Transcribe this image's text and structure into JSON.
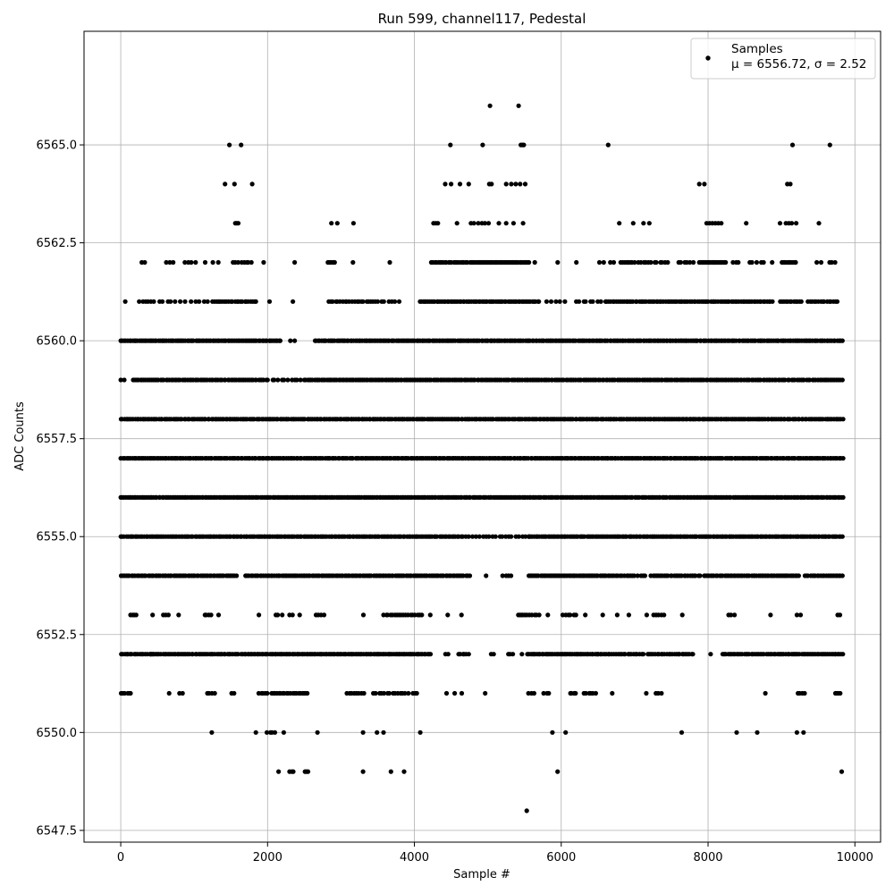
{
  "chart_data": {
    "type": "scatter",
    "title": "Run 599, channel117, Pedestal",
    "xlabel": "Sample #",
    "ylabel": "ADC Counts",
    "xlim": [
      -500,
      10350
    ],
    "ylim": [
      6547.2,
      6567.9
    ],
    "xticks": [
      0,
      2000,
      4000,
      6000,
      8000,
      10000
    ],
    "xtick_labels": [
      "0",
      "2000",
      "4000",
      "6000",
      "8000",
      "10000"
    ],
    "yticks": [
      6547.5,
      6550.0,
      6552.5,
      6555.0,
      6557.5,
      6560.0,
      6562.5,
      6565.0
    ],
    "ytick_labels": [
      "6547.5",
      "6550.0",
      "6552.5",
      "6555.0",
      "6557.5",
      "6560.0",
      "6562.5",
      "6565.0"
    ],
    "grid": true,
    "legend_position": "top-right",
    "marker_color": "#000000",
    "series": [
      {
        "name": "Samples",
        "stats_label": "μ = 6556.72, σ = 2.52",
        "levels": [
          {
            "y": 6566,
            "x": [
              5030,
              5420
            ]
          },
          {
            "y": 6565,
            "x": [
              1480,
              1640,
              4490,
              4930,
              5450,
              5470,
              5490,
              6640,
              9150,
              9660
            ]
          },
          {
            "y": 6564,
            "x": [
              1420,
              1550,
              1790,
              4420,
              4500,
              4620,
              4740,
              5020,
              5050,
              5250,
              5320,
              5380,
              5440,
              5510,
              7880,
              7950,
              9080,
              9120
            ]
          },
          {
            "y": 6563,
            "x": [
              1560,
              1580,
              1600,
              2870,
              2950,
              3170,
              4260,
              4290,
              4320,
              4580,
              4770,
              4810,
              4870,
              4920,
              4960,
              5010,
              5150,
              5250,
              5350,
              5480,
              6790,
              6980,
              7120,
              7200,
              7980,
              8020,
              8060,
              8100,
              8140,
              8180,
              8520,
              8980,
              9060,
              9100,
              9140,
              9200,
              9510
            ]
          },
          {
            "y": 6562,
            "ranges": [
              [
                280,
                330,
                2
              ],
              [
                620,
                720,
                3
              ],
              [
                870,
                1020,
                4
              ],
              [
                1150,
                1350,
                3
              ],
              [
                1530,
                1780,
                8
              ],
              [
                1940,
                1960,
                1
              ],
              [
                2360,
                2380,
                1
              ],
              [
                2820,
                2920,
                6
              ],
              [
                3160,
                3180,
                1
              ],
              [
                3650,
                3670,
                1
              ],
              [
                4230,
                4720,
                22
              ],
              [
                4760,
                5560,
                45
              ],
              [
                5620,
                5650,
                1
              ],
              [
                5940,
                5960,
                1
              ],
              [
                6200,
                6230,
                1
              ],
              [
                6520,
                6720,
                4
              ],
              [
                6810,
                7000,
                8
              ],
              [
                7050,
                7450,
                12
              ],
              [
                7600,
                7800,
                6
              ],
              [
                7880,
                8240,
                22
              ],
              [
                8340,
                8420,
                3
              ],
              [
                8560,
                8760,
                5
              ],
              [
                8860,
                8880,
                1
              ],
              [
                9000,
                9200,
                10
              ],
              [
                9480,
                9540,
                2
              ],
              [
                9650,
                9730,
                3
              ]
            ]
          },
          {
            "y": 6561,
            "ranges": [
              [
                50,
                80,
                1
              ],
              [
                250,
                420,
                5
              ],
              [
                450,
                1250,
                14
              ],
              [
                1280,
                1850,
                22
              ],
              [
                2020,
                2050,
                1
              ],
              [
                2330,
                2360,
                1
              ],
              [
                2830,
                3500,
                22
              ],
              [
                3540,
                3800,
                6
              ],
              [
                4070,
                5700,
                70
              ],
              [
                5800,
                6050,
                5
              ],
              [
                6200,
                6540,
                8
              ],
              [
                6600,
                8880,
                90
              ],
              [
                8980,
                9270,
                12
              ],
              [
                9360,
                9760,
                15
              ]
            ]
          },
          {
            "y": 6560,
            "ranges": [
              [
                0,
                2180,
                95
              ],
              [
                2310,
                2380,
                2
              ],
              [
                2640,
                5050,
                105
              ],
              [
                5050,
                9830,
                200
              ]
            ]
          },
          {
            "y": 6559,
            "ranges": [
              [
                0,
                60,
                2
              ],
              [
                170,
                2000,
                75
              ],
              [
                2060,
                2450,
                10
              ],
              [
                2500,
                4700,
                95
              ],
              [
                4700,
                9830,
                200
              ]
            ]
          },
          {
            "y": 6558,
            "ranges": [
              [
                0,
                9840,
                400
              ]
            ]
          },
          {
            "y": 6557,
            "ranges": [
              [
                0,
                9840,
                380
              ]
            ]
          },
          {
            "y": 6556,
            "ranges": [
              [
                0,
                9840,
                420
              ]
            ]
          },
          {
            "y": 6555,
            "ranges": [
              [
                0,
                4660,
                190
              ],
              [
                4700,
                5560,
                20
              ],
              [
                5560,
                9830,
                180
              ]
            ]
          },
          {
            "y": 6554,
            "ranges": [
              [
                0,
                1580,
                65
              ],
              [
                1700,
                4620,
                120
              ],
              [
                4640,
                4760,
                5
              ],
              [
                4970,
                4990,
                1
              ],
              [
                5200,
                5320,
                4
              ],
              [
                5560,
                6660,
                50
              ],
              [
                6690,
                7000,
                12
              ],
              [
                7040,
                7150,
                4
              ],
              [
                7220,
                7890,
                26
              ],
              [
                7940,
                9240,
                55
              ],
              [
                9320,
                9830,
                22
              ]
            ]
          },
          {
            "y": 6553,
            "ranges": [
              [
                130,
                210,
                4
              ],
              [
                430,
                440,
                1
              ],
              [
                580,
                650,
                3
              ],
              [
                780,
                800,
                1
              ],
              [
                1140,
                1230,
                4
              ],
              [
                1330,
                1340,
                1
              ],
              [
                1880,
                1890,
                1
              ],
              [
                2100,
                2200,
                3
              ],
              [
                2300,
                2340,
                2
              ],
              [
                2430,
                2440,
                1
              ],
              [
                2660,
                2780,
                4
              ],
              [
                3300,
                3310,
                1
              ],
              [
                3580,
                4100,
                18
              ],
              [
                4200,
                4220,
                1
              ],
              [
                4440,
                4460,
                1
              ],
              [
                4640,
                4650,
                1
              ],
              [
                5410,
                5530,
                6
              ],
              [
                5560,
                5700,
                5
              ],
              [
                5800,
                5830,
                1
              ],
              [
                6020,
                6200,
                6
              ],
              [
                6310,
                6330,
                1
              ],
              [
                6560,
                6580,
                1
              ],
              [
                6750,
                6770,
                1
              ],
              [
                6910,
                6930,
                1
              ],
              [
                7160,
                7180,
                1
              ],
              [
                7250,
                7400,
                5
              ],
              [
                7640,
                7660,
                1
              ],
              [
                8280,
                8360,
                3
              ],
              [
                8840,
                8860,
                1
              ],
              [
                9210,
                9260,
                2
              ],
              [
                9760,
                9800,
                2
              ]
            ]
          },
          {
            "y": 6552,
            "ranges": [
              [
                0,
                440,
                18
              ],
              [
                400,
                1600,
                50
              ],
              [
                1640,
                4220,
                120
              ],
              [
                4420,
                4460,
                2
              ],
              [
                4600,
                4740,
                6
              ],
              [
                5040,
                5080,
                2
              ],
              [
                5280,
                5340,
                3
              ],
              [
                5440,
                5470,
                1
              ],
              [
                5540,
                6500,
                45
              ],
              [
                6500,
                7120,
                24
              ],
              [
                7180,
                7800,
                25
              ],
              [
                8020,
                8040,
                1
              ],
              [
                8200,
                8760,
                24
              ],
              [
                8800,
                9840,
                45
              ]
            ]
          },
          {
            "y": 6551,
            "ranges": [
              [
                0,
                120,
                5
              ],
              [
                120,
                140,
                1
              ],
              [
                650,
                670,
                1
              ],
              [
                800,
                850,
                2
              ],
              [
                1180,
                1280,
                4
              ],
              [
                1510,
                1550,
                2
              ],
              [
                1880,
                2000,
                5
              ],
              [
                2050,
                2550,
                20
              ],
              [
                3080,
                3320,
                8
              ],
              [
                3440,
                3920,
                14
              ],
              [
                3980,
                4040,
                3
              ],
              [
                4420,
                4440,
                1
              ],
              [
                4540,
                4560,
                1
              ],
              [
                4640,
                4660,
                1
              ],
              [
                4950,
                4970,
                1
              ],
              [
                5550,
                5630,
                3
              ],
              [
                5760,
                5840,
                3
              ],
              [
                6120,
                6200,
                4
              ],
              [
                6310,
                6470,
                6
              ],
              [
                6680,
                6700,
                1
              ],
              [
                7150,
                7170,
                1
              ],
              [
                7290,
                7370,
                3
              ],
              [
                8770,
                8790,
                1
              ],
              [
                9220,
                9320,
                4
              ],
              [
                9730,
                9800,
                4
              ]
            ]
          },
          {
            "y": 6550,
            "x": [
              1240,
              1840,
              1990,
              2040,
              2060,
              2100,
              2220,
              2680,
              3300,
              3490,
              3580,
              4080,
              5880,
              6060,
              7640,
              8390,
              8670,
              9210,
              9300
            ]
          },
          {
            "y": 6549,
            "x": [
              2150,
              2300,
              2330,
              2350,
              2510,
              2530,
              2550,
              3300,
              3680,
              3860,
              5950,
              9820
            ]
          },
          {
            "y": 6548,
            "x": [
              5530
            ]
          }
        ]
      }
    ]
  }
}
